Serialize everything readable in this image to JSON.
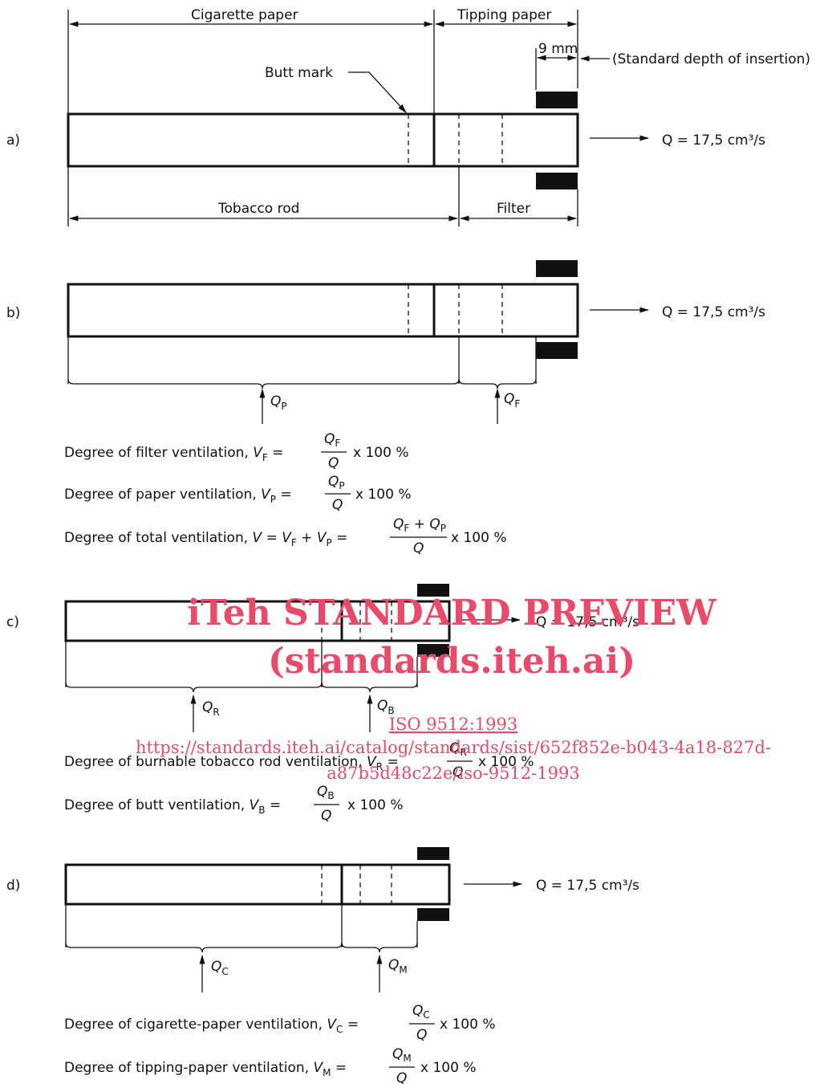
{
  "labels": {
    "cigarette_paper": "Cigarette paper",
    "tipping_paper": "Tipping paper",
    "nine_mm": "9 mm",
    "standard_depth": "(Standard depth of insertion)",
    "butt_mark": "Butt mark",
    "tobacco_rod": "Tobacco rod",
    "filter": "Filter",
    "flow": "Q = 17,5 cm³/s"
  },
  "panels": {
    "a": "a)",
    "b": "b)",
    "c": "c)",
    "d": "d)"
  },
  "flows": {
    "qp": "Q",
    "qp_sub": "P",
    "qf": "Q",
    "qf_sub": "F",
    "qr": "Q",
    "qr_sub": "R",
    "qb": "Q",
    "qb_sub": "B",
    "qc": "Q",
    "qc_sub": "C",
    "qm": "Q",
    "qm_sub": "M"
  },
  "formulas": {
    "vf": {
      "text": "Degree of filter ventilation, ",
      "var": "V",
      "sub": "F",
      "num": "Q",
      "num_sub": "F",
      "den": "Q",
      "tail": "x 100 %"
    },
    "vp": {
      "text": "Degree of paper ventilation, ",
      "var": "V",
      "sub": "P",
      "num": "Q",
      "num_sub": "P",
      "den": "Q",
      "tail": "x 100 %"
    },
    "vt": {
      "text": "Degree of total ventilation, ",
      "var": "V",
      "mid": " =  V",
      "mid_sub": "F",
      "plus": " +  V",
      "plus_sub": "P",
      "num": "Q",
      "num_sub1": "F",
      "num_plus": " + Q",
      "num_sub2": "P",
      "den": "Q",
      "tail": "x 100 %"
    },
    "vr": {
      "text": "Degree of burnable tobacco rod ventilation, ",
      "var": "V",
      "sub": "R",
      "num": "Q",
      "num_sub": "R",
      "den": "Q",
      "tail": "x 100 %"
    },
    "vb": {
      "text": "Degree of butt ventilation, ",
      "var": "V",
      "sub": "B",
      "num": "Q",
      "num_sub": "B",
      "den": "Q",
      "tail": "x 100 %"
    },
    "vc": {
      "text": "Degree of cigarette-paper ventilation, ",
      "var": "V",
      "sub": "C",
      "num": "Q",
      "num_sub": "C",
      "den": "Q",
      "tail": "x 100 %"
    },
    "vm": {
      "text": "Degree of tipping-paper ventilation, ",
      "var": "V",
      "sub": "M",
      "num": "Q",
      "num_sub": "M",
      "den": "Q",
      "tail": "x 100 %"
    }
  },
  "watermark": {
    "title": "iTeh STANDARD PREVIEW",
    "site": "(standards.iteh.ai)",
    "doc": "ISO 9512:1993",
    "url1": "https://standards.iteh.ai/catalog/standards/sist/652f852e-b043-4a18-827d-",
    "url2": "a87b5d48c22e/iso-9512-1993"
  }
}
